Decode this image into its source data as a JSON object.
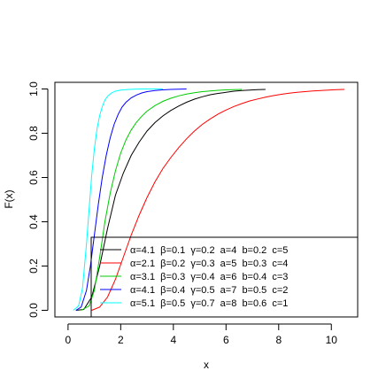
{
  "chart_data": {
    "type": "line",
    "title": "",
    "xlabel": "x",
    "ylabel": "F(x)",
    "xlim": [
      -0.5,
      11
    ],
    "ylim": [
      -0.03,
      1.03
    ],
    "xticks": [
      "0",
      "2",
      "4",
      "6",
      "8",
      "10"
    ],
    "yticks": [
      "0.0",
      "0.2",
      "0.4",
      "0.6",
      "0.8",
      "1.0"
    ],
    "grid": false,
    "legend_position": "bottom-right",
    "series": [
      {
        "name": "α=4.1  β=0.1  γ=0.2  a=4  b=0.2  c=5",
        "color": "#000000",
        "x": [
          0.3,
          0.6,
          0.9,
          1.2,
          1.5,
          1.8,
          2.1,
          2.4,
          2.7,
          3.0,
          3.3,
          3.6,
          3.9,
          4.2,
          4.5,
          4.8,
          5.1,
          5.4,
          5.7,
          6.0,
          6.3,
          6.6,
          6.9,
          7.2,
          7.5
        ],
        "y": [
          0.0,
          0.004,
          0.06,
          0.2,
          0.37,
          0.52,
          0.62,
          0.7,
          0.76,
          0.81,
          0.848,
          0.878,
          0.903,
          0.923,
          0.94,
          0.954,
          0.965,
          0.974,
          0.98,
          0.985,
          0.99,
          0.993,
          0.995,
          0.997,
          0.998
        ]
      },
      {
        "name": "α=2.1  β=0.2  γ=0.3  a=5  b=0.3  c=4",
        "color": "#ff0000",
        "x": [
          0.9,
          1.2,
          1.5,
          1.8,
          2.1,
          2.4,
          2.7,
          3.0,
          3.3,
          3.6,
          3.9,
          4.2,
          4.5,
          4.8,
          5.1,
          5.4,
          5.7,
          6.0,
          6.3,
          6.6,
          6.9,
          7.2,
          7.5,
          7.8,
          8.1,
          8.4,
          8.7,
          9.0,
          9.3,
          9.6,
          9.9,
          10.2,
          10.5
        ],
        "y": [
          0.0,
          0.015,
          0.06,
          0.14,
          0.24,
          0.34,
          0.43,
          0.51,
          0.58,
          0.64,
          0.69,
          0.735,
          0.775,
          0.81,
          0.84,
          0.865,
          0.887,
          0.905,
          0.921,
          0.934,
          0.946,
          0.955,
          0.963,
          0.97,
          0.976,
          0.981,
          0.985,
          0.988,
          0.991,
          0.993,
          0.995,
          0.997,
          0.998
        ]
      },
      {
        "name": "α=3.1  β=0.3  γ=0.4  a=6  b=0.4  c=3",
        "color": "#00cc00",
        "x": [
          0.5,
          0.8,
          1.0,
          1.2,
          1.4,
          1.6,
          1.8,
          2.0,
          2.2,
          2.4,
          2.6,
          2.8,
          3.0,
          3.3,
          3.6,
          3.9,
          4.2,
          4.5,
          4.8,
          5.1,
          5.4,
          5.7,
          6.0,
          6.3,
          6.6
        ],
        "y": [
          0.0,
          0.02,
          0.09,
          0.24,
          0.4,
          0.53,
          0.63,
          0.71,
          0.77,
          0.815,
          0.85,
          0.877,
          0.9,
          0.925,
          0.944,
          0.958,
          0.969,
          0.977,
          0.983,
          0.988,
          0.991,
          0.994,
          0.996,
          0.997,
          0.998
        ]
      },
      {
        "name": "α=4.1  β=0.4  γ=0.5  a=7  b=0.5  c=2",
        "color": "#0000ff",
        "x": [
          0.3,
          0.5,
          0.7,
          0.85,
          1.0,
          1.15,
          1.3,
          1.45,
          1.6,
          1.75,
          1.9,
          2.05,
          2.2,
          2.4,
          2.6,
          2.8,
          3.0,
          3.3,
          3.6,
          3.9,
          4.2,
          4.5
        ],
        "y": [
          0.0,
          0.015,
          0.09,
          0.2,
          0.34,
          0.48,
          0.6,
          0.7,
          0.78,
          0.84,
          0.885,
          0.918,
          0.94,
          0.96,
          0.973,
          0.982,
          0.988,
          0.993,
          0.996,
          0.998,
          0.999,
          1.0
        ]
      },
      {
        "name": "α=5.1  β=0.5  γ=0.7  a=8  b=0.6  c=1",
        "color": "#00ffff",
        "x": [
          0.2,
          0.4,
          0.55,
          0.7,
          0.8,
          0.9,
          1.0,
          1.1,
          1.2,
          1.3,
          1.4,
          1.5,
          1.65,
          1.8,
          2.0,
          2.2,
          2.5,
          2.8,
          3.1,
          3.4,
          3.6
        ],
        "y": [
          0.0,
          0.02,
          0.1,
          0.3,
          0.46,
          0.61,
          0.73,
          0.82,
          0.88,
          0.92,
          0.95,
          0.967,
          0.982,
          0.99,
          0.995,
          0.997,
          0.999,
          1.0,
          1.0,
          1.0,
          1.0
        ]
      }
    ]
  }
}
